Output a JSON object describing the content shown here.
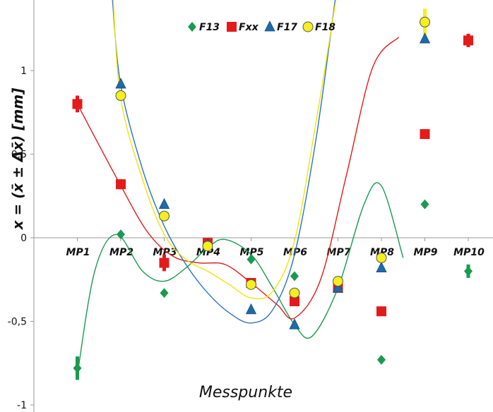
{
  "chart_data": {
    "type": "scatter",
    "title": "",
    "xlabel": "Messpunkte",
    "ylabel": "x = (x̄ ± Δx̄) [mm]",
    "categories": [
      "MP1",
      "MP2",
      "MP3",
      "MP4",
      "MP5",
      "MP6",
      "MP7",
      "MP8",
      "MP9",
      "MP10"
    ],
    "ylim": [
      -1,
      1.42
    ],
    "yticks": [
      -1,
      -0.5,
      0,
      0.5,
      1
    ],
    "ytick_labels": [
      "-1",
      "-0,5",
      "0",
      "0,5",
      "1"
    ],
    "grid": false,
    "legend_position": "top-center",
    "series": [
      {
        "name": "F13",
        "marker": "diamond",
        "color": "#1a9a50",
        "values": [
          -0.78,
          0.02,
          -0.33,
          -0.03,
          -0.13,
          -0.23,
          -0.3,
          -0.73,
          0.2,
          -0.2
        ],
        "errors": [
          0.07,
          0,
          0,
          0,
          0,
          0,
          0,
          0,
          0,
          0.04
        ],
        "trend": [
          -0.82,
          -0.2,
          0.02,
          -0.2,
          -0.26,
          -0.18,
          -0.06,
          -0.01,
          -0.1,
          -0.3,
          -0.52,
          -0.59,
          -0.3,
          0.2,
          0.31,
          -0.12
        ]
      },
      {
        "name": "Fxx",
        "marker": "square",
        "color": "#e31b1b",
        "values": [
          0.8,
          0.32,
          -0.15,
          -0.03,
          -0.27,
          -0.38,
          -0.3,
          -0.44,
          0.62,
          1.18
        ],
        "errors": [
          0.05,
          0.03,
          0.05,
          0,
          0,
          0,
          0,
          0,
          0,
          0.04
        ],
        "trend": [
          0.8,
          0.36,
          0.04,
          -0.11,
          -0.15,
          -0.16,
          -0.27,
          -0.4,
          -0.48,
          -0.25,
          0.38,
          1.02,
          1.2
        ]
      },
      {
        "name": "F17",
        "marker": "triangle",
        "color": "#1f6aa8",
        "values": [
          null,
          0.92,
          0.2,
          -0.04,
          -0.43,
          -0.52,
          -0.3,
          -0.18,
          1.19,
          null
        ],
        "errors": [
          0,
          0,
          0,
          0,
          0,
          0,
          0,
          0,
          0,
          0
        ],
        "trend": [
          1.45,
          0.91,
          0.41,
          0.07,
          -0.16,
          -0.33,
          -0.45,
          -0.51,
          -0.43,
          -0.1,
          0.6,
          1.45
        ]
      },
      {
        "name": "F18",
        "marker": "circle",
        "color": "#f5ef1c",
        "values": [
          null,
          0.85,
          0.13,
          -0.05,
          -0.28,
          -0.33,
          -0.26,
          -0.12,
          1.29,
          null
        ],
        "errors": [
          0,
          0,
          0,
          0,
          0,
          0,
          0,
          0,
          0.08,
          0
        ],
        "trend": [
          1.45,
          0.83,
          0.35,
          0.02,
          -0.13,
          -0.2,
          -0.28,
          -0.36,
          -0.32,
          -0.02,
          0.7,
          1.45
        ]
      }
    ],
    "trend_x": {
      "F13": [
        1.0,
        1.4,
        1.9,
        2.5,
        3.0,
        3.5,
        4.0,
        4.4,
        5.0,
        5.5,
        6.0,
        6.4,
        7.0,
        7.6,
        8.0,
        8.5
      ],
      "Fxx": [
        1.0,
        1.9,
        2.6,
        3.2,
        3.8,
        4.4,
        5.0,
        5.6,
        6.0,
        6.6,
        7.2,
        7.8,
        8.4
      ],
      "F17": [
        1.8,
        2.0,
        2.5,
        3.0,
        3.5,
        4.0,
        4.5,
        5.0,
        5.5,
        6.0,
        6.5,
        6.95
      ],
      "F18": [
        1.82,
        2.0,
        2.5,
        3.0,
        3.5,
        4.0,
        4.5,
        5.0,
        5.5,
        6.0,
        6.5,
        6.97
      ]
    }
  }
}
